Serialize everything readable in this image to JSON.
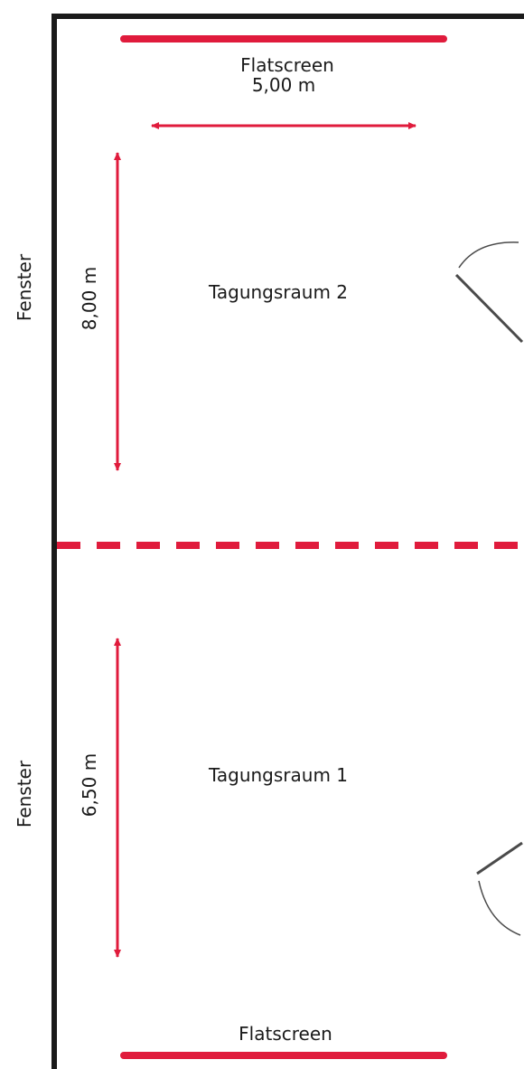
{
  "floor_plan": {
    "flatscreen_top_label": "Flatscreen",
    "width_label": "5,00 m",
    "room_2": {
      "name": "Tagungsraum 2",
      "depth_label": "8,00 m",
      "window_label": "Fenster"
    },
    "room_1": {
      "name": "Tagungsraum 1",
      "depth_label": "6,50 m",
      "window_label": "Fenster"
    },
    "flatscreen_bottom_label": "Flatscreen"
  },
  "colors": {
    "accent_red": "#e01b3c",
    "wall": "#1a1a1a",
    "door": "#4a4a4a"
  }
}
